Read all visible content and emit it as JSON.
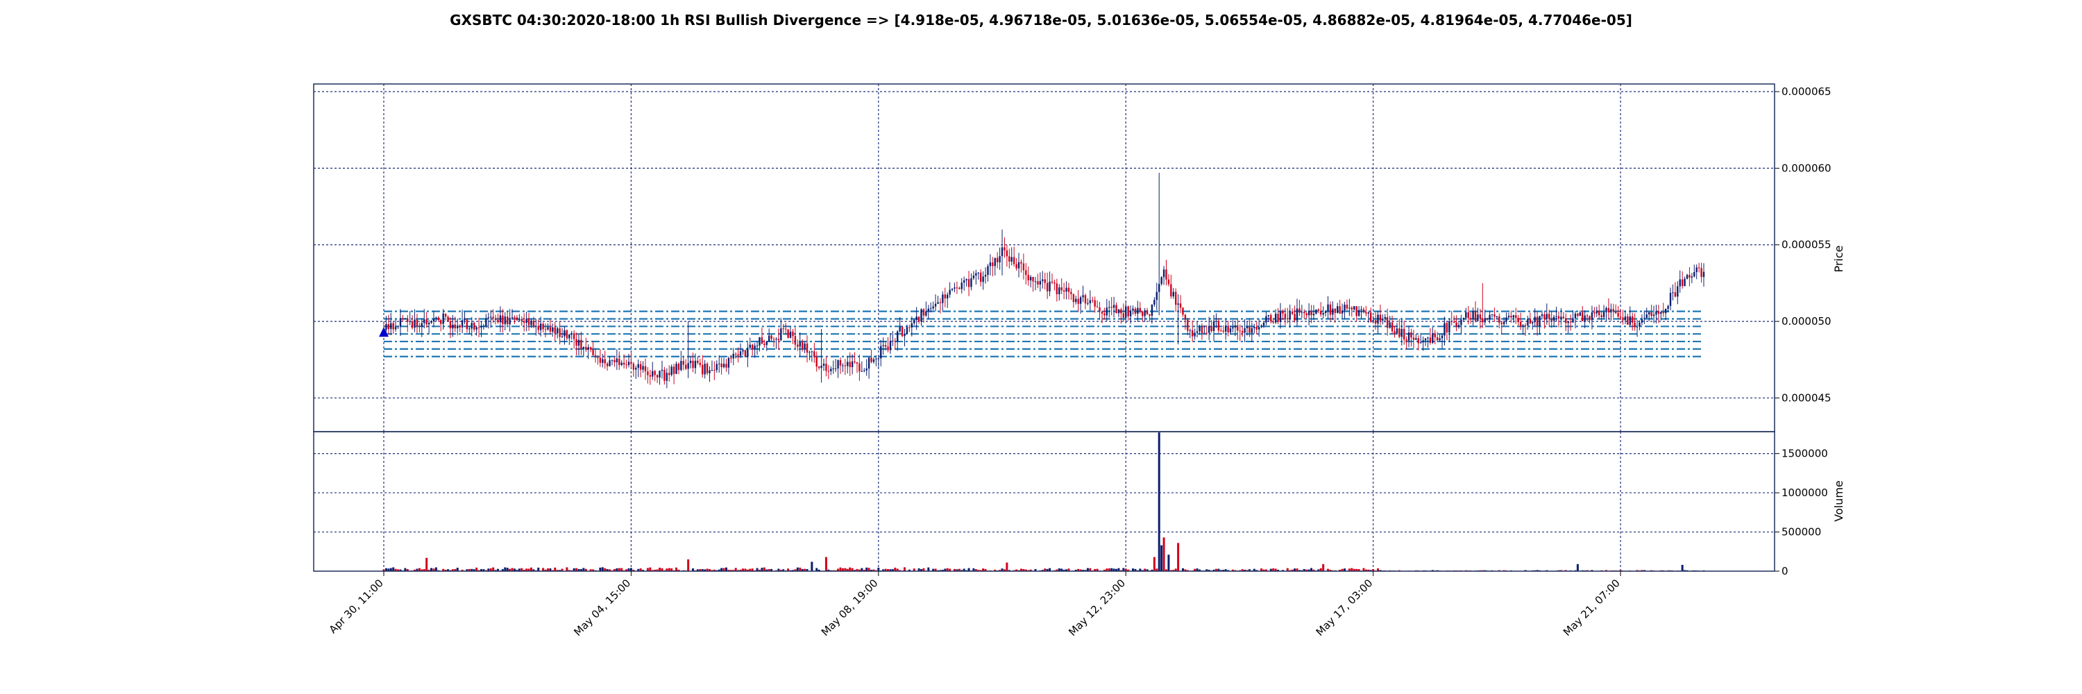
{
  "chart_data": {
    "type": "candlestick",
    "title": "GXSBTC 04:30:2020-18:00 1h RSI Bullish Divergence => [4.918e-05, 4.96718e-05, 5.01636e-05, 5.06554e-05, 4.86882e-05, 4.81964e-05, 4.77046e-05]",
    "price_panel": {
      "ylabel": "Price",
      "ylim": [
        4.28e-05,
        6.55e-05
      ],
      "yticks": [
        {
          "value": 4.5e-05,
          "label": "0.000045"
        },
        {
          "value": 5e-05,
          "label": "0.000050"
        },
        {
          "value": 5.5e-05,
          "label": "0.000055"
        },
        {
          "value": 6e-05,
          "label": "0.000060"
        },
        {
          "value": 6.5e-05,
          "label": "0.000065"
        }
      ],
      "horizontal_levels": [
        4.918e-05,
        4.96718e-05,
        5.01636e-05,
        5.06554e-05,
        4.86882e-05,
        4.81964e-05,
        4.77046e-05
      ],
      "signal_marker": {
        "time": "Apr 30, 11:00",
        "value": 4.918e-05,
        "shape": "triangle-up"
      },
      "price_path": [
        [
          0,
          4.95e-05
        ],
        [
          6,
          5e-05
        ],
        [
          14,
          4.98e-05
        ],
        [
          22,
          5.04e-05
        ],
        [
          30,
          4.97e-05
        ],
        [
          40,
          4.99e-05
        ],
        [
          52,
          5.02e-05
        ],
        [
          64,
          4.98e-05
        ],
        [
          74,
          4.93e-05
        ],
        [
          84,
          4.85e-05
        ],
        [
          92,
          4.75e-05
        ],
        [
          100,
          4.72e-05
        ],
        [
          110,
          4.68e-05
        ],
        [
          118,
          4.65e-05
        ],
        [
          124,
          4.7e-05
        ],
        [
          128,
          4.73e-05
        ],
        [
          136,
          4.68e-05
        ],
        [
          146,
          4.74e-05
        ],
        [
          156,
          4.85e-05
        ],
        [
          168,
          4.93e-05
        ],
        [
          176,
          4.85e-05
        ],
        [
          184,
          4.68e-05
        ],
        [
          192,
          4.72e-05
        ],
        [
          202,
          4.7e-05
        ],
        [
          212,
          4.85e-05
        ],
        [
          222,
          5e-05
        ],
        [
          232,
          5.12e-05
        ],
        [
          242,
          5.24e-05
        ],
        [
          252,
          5.3e-05
        ],
        [
          260,
          5.45e-05
        ],
        [
          266,
          5.38e-05
        ],
        [
          274,
          5.25e-05
        ],
        [
          282,
          5.22e-05
        ],
        [
          292,
          5.15e-05
        ],
        [
          302,
          5.08e-05
        ],
        [
          312,
          5.06e-05
        ],
        [
          322,
          5.07e-05
        ],
        [
          328,
          5.3e-05
        ],
        [
          334,
          5.08e-05
        ],
        [
          340,
          4.92e-05
        ],
        [
          350,
          4.98e-05
        ],
        [
          362,
          4.95e-05
        ],
        [
          374,
          5.02e-05
        ],
        [
          386,
          5.05e-05
        ],
        [
          398,
          5.08e-05
        ],
        [
          410,
          5.06e-05
        ],
        [
          420,
          5e-05
        ],
        [
          430,
          4.9e-05
        ],
        [
          440,
          4.88e-05
        ],
        [
          446,
          4.95e-05
        ],
        [
          456,
          5.05e-05
        ],
        [
          470,
          5e-05
        ],
        [
          486,
          5.01e-05
        ],
        [
          500,
          5.02e-05
        ],
        [
          514,
          5.05e-05
        ],
        [
          526,
          5e-05
        ],
        [
          536,
          5.05e-05
        ],
        [
          544,
          5.22e-05
        ],
        [
          550,
          5.32e-05
        ]
      ],
      "spikes": [
        {
          "i": 128,
          "high": 5e-05,
          "low": 4.68e-05
        },
        {
          "i": 184,
          "high": 4.95e-05,
          "low": 4.6e-05
        },
        {
          "i": 260,
          "high": 5.6e-05,
          "low": 5.3e-05
        },
        {
          "i": 326,
          "high": 5.97e-05,
          "low": 5.04e-05
        },
        {
          "i": 334,
          "high": 5.06e-05,
          "low": 4.85e-05
        },
        {
          "i": 462,
          "high": 5.25e-05,
          "low": 4.98e-05
        }
      ]
    },
    "volume_panel": {
      "ylabel": "Volume",
      "ylim": [
        0,
        1780000
      ],
      "yticks": [
        {
          "value": 0,
          "label": "0"
        },
        {
          "value": 500000,
          "label": "500000"
        },
        {
          "value": 1000000,
          "label": "1000000"
        },
        {
          "value": 1500000,
          "label": "1500000"
        }
      ],
      "spikes": [
        {
          "i": 18,
          "value": 170000,
          "color": "red"
        },
        {
          "i": 128,
          "value": 150000,
          "color": "red"
        },
        {
          "i": 180,
          "value": 120000,
          "color": "blue"
        },
        {
          "i": 186,
          "value": 180000,
          "color": "red"
        },
        {
          "i": 262,
          "value": 110000,
          "color": "red"
        },
        {
          "i": 324,
          "value": 180000,
          "color": "red"
        },
        {
          "i": 326,
          "value": 1770000,
          "color": "blue"
        },
        {
          "i": 327,
          "value": 330000,
          "color": "blue"
        },
        {
          "i": 328,
          "value": 430000,
          "color": "red"
        },
        {
          "i": 330,
          "value": 210000,
          "color": "blue"
        },
        {
          "i": 334,
          "value": 360000,
          "color": "red"
        },
        {
          "i": 395,
          "value": 90000,
          "color": "red"
        },
        {
          "i": 502,
          "value": 90000,
          "color": "blue"
        },
        {
          "i": 546,
          "value": 80000,
          "color": "blue"
        }
      ]
    },
    "x": {
      "count": 556,
      "ticks": [
        {
          "i": 0,
          "label": "Apr 30, 11:00"
        },
        {
          "i": 104,
          "label": "May 04, 15:00"
        },
        {
          "i": 208,
          "label": "May 08, 19:00"
        },
        {
          "i": 312,
          "label": "May 12, 23:00"
        },
        {
          "i": 416,
          "label": "May 17, 03:00"
        },
        {
          "i": 520,
          "label": "May 21, 07:00"
        }
      ]
    },
    "colors": {
      "up": "#0b1f6e",
      "down": "#d0021b",
      "grid": "#1f2f7a",
      "levels": "#1f77b4",
      "marker": "#0000cc",
      "axis": "#1f2f5a"
    },
    "grid": true
  }
}
